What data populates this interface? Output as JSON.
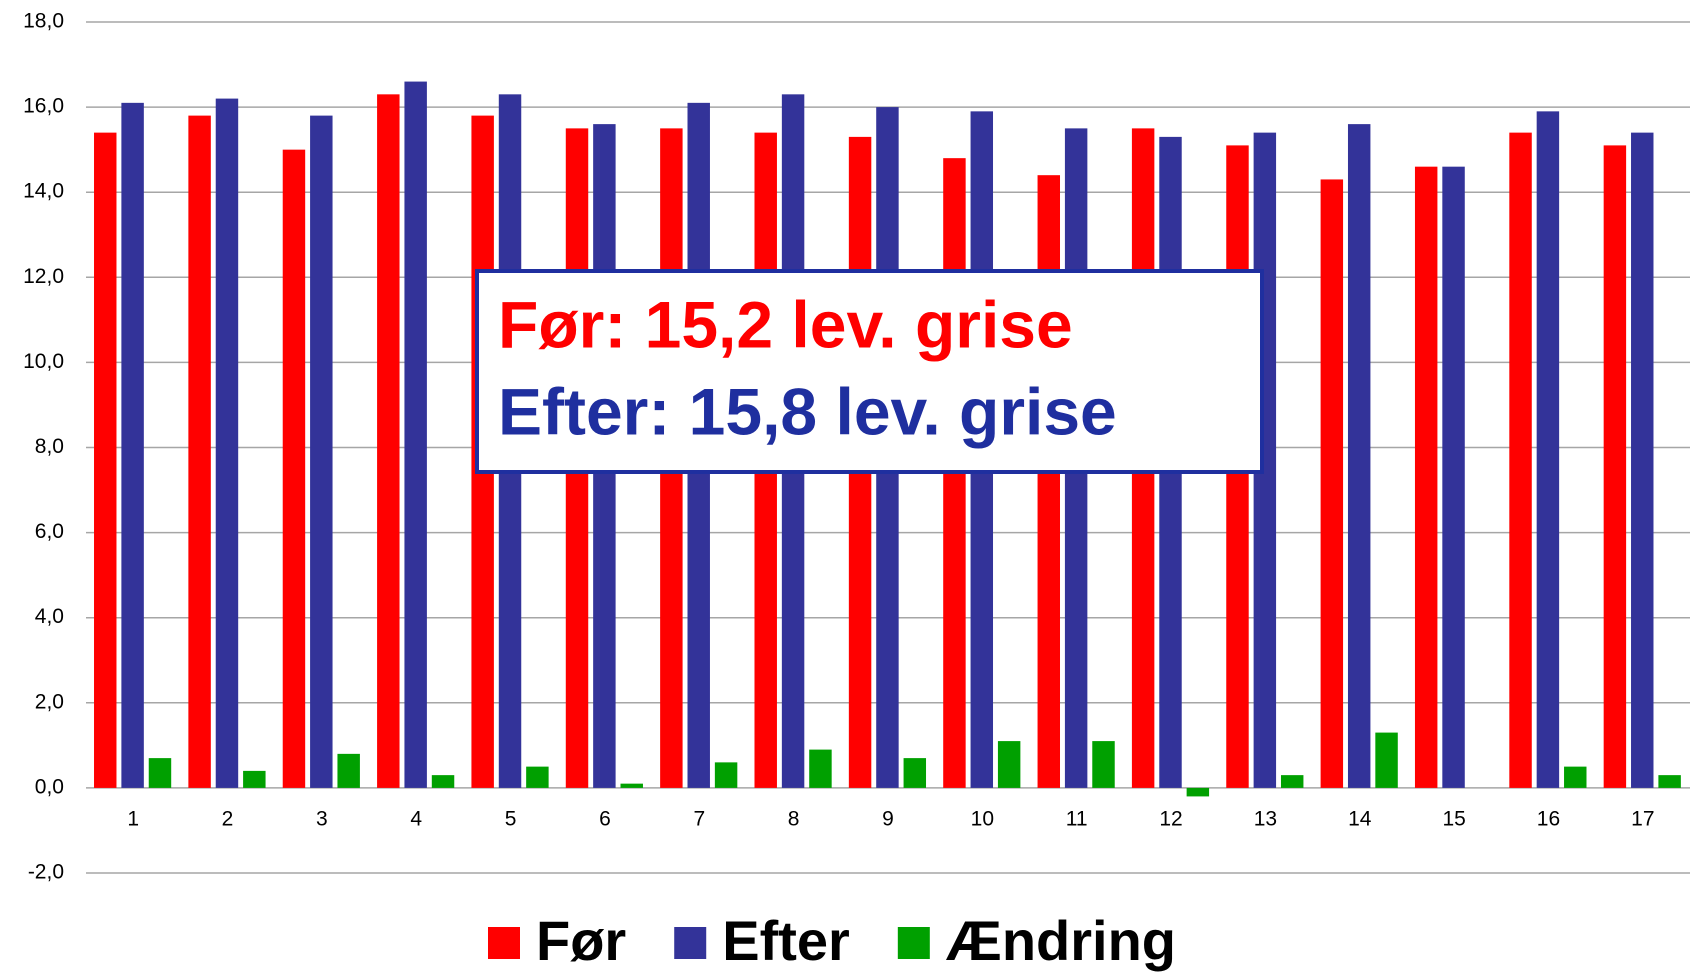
{
  "chart_data": {
    "type": "bar",
    "categories": [
      "1",
      "2",
      "3",
      "4",
      "5",
      "6",
      "7",
      "8",
      "9",
      "10",
      "11",
      "12",
      "13",
      "14",
      "15",
      "16",
      "17"
    ],
    "series": [
      {
        "name": "Før",
        "color": "#ff0000",
        "values": [
          15.4,
          15.8,
          15.0,
          16.3,
          15.8,
          15.5,
          15.5,
          15.4,
          15.3,
          14.8,
          14.4,
          15.5,
          15.1,
          14.3,
          14.6,
          15.4,
          15.1
        ]
      },
      {
        "name": "Efter",
        "color": "#333399",
        "values": [
          16.1,
          16.2,
          15.8,
          16.6,
          16.3,
          15.6,
          16.1,
          16.3,
          16.0,
          15.9,
          15.5,
          15.3,
          15.4,
          15.6,
          14.6,
          15.9,
          15.4
        ]
      },
      {
        "name": "Ændring",
        "color": "#00a000",
        "values": [
          0.7,
          0.4,
          0.8,
          0.3,
          0.5,
          0.1,
          0.6,
          0.9,
          0.7,
          1.1,
          1.1,
          -0.2,
          0.3,
          1.3,
          0.0,
          0.5,
          0.3
        ]
      }
    ],
    "ylim": [
      -2,
      18
    ],
    "yticks": [
      {
        "value": -2,
        "label": "-2,0"
      },
      {
        "value": 0,
        "label": "0,0"
      },
      {
        "value": 2,
        "label": "2,0"
      },
      {
        "value": 4,
        "label": "4,0"
      },
      {
        "value": 6,
        "label": "6,0"
      },
      {
        "value": 8,
        "label": "8,0"
      },
      {
        "value": 10,
        "label": "10,0"
      },
      {
        "value": 12,
        "label": "12,0"
      },
      {
        "value": 14,
        "label": "14,0"
      },
      {
        "value": 16,
        "label": "16,0"
      },
      {
        "value": 18,
        "label": "18,0"
      }
    ],
    "grid": true,
    "legend": "bottom",
    "annotations": [
      {
        "text": "Før: 15,2 lev. grise",
        "color": "#ff0000"
      },
      {
        "text": "Efter: 15,8 lev. grise",
        "color": "#1f2f9f"
      }
    ]
  }
}
